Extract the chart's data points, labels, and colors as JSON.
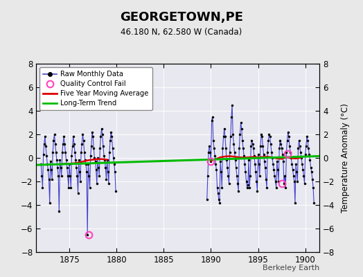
{
  "title": "GEORGETOWN,PE",
  "subtitle": "46.180 N, 62.580 W (Canada)",
  "ylabel": "Temperature Anomaly (°C)",
  "xlabel_credit": "Berkeley Earth",
  "xlim": [
    1871.5,
    1901.5
  ],
  "ylim": [
    -8,
    8
  ],
  "yticks": [
    -8,
    -6,
    -4,
    -2,
    0,
    2,
    4,
    6,
    8
  ],
  "xticks": [
    1875,
    1880,
    1885,
    1890,
    1895,
    1900
  ],
  "bg_color": "#e8e8e8",
  "plot_bg_color": "#e8e8f0",
  "line_color": "#4444cc",
  "dot_color": "#000000",
  "ma_color": "#dd0000",
  "ma_lw": 1.8,
  "trend_color": "#00bb00",
  "trend_lw": 2.2,
  "qc_color": "#ff44bb",
  "raw_segments": [
    {
      "x": [
        1872.0,
        1872.083,
        1872.167,
        1872.25,
        1872.333,
        1872.417,
        1872.5,
        1872.583,
        1872.667,
        1872.75,
        1872.833,
        1872.917,
        1873.0,
        1873.083,
        1873.167,
        1873.25,
        1873.333,
        1873.417,
        1873.5,
        1873.583,
        1873.667,
        1873.75,
        1873.833,
        1873.917,
        1874.0,
        1874.083,
        1874.167,
        1874.25,
        1874.333,
        1874.417,
        1874.5,
        1874.583,
        1874.667,
        1874.75,
        1874.833,
        1874.917,
        1875.0,
        1875.083,
        1875.167,
        1875.25,
        1875.333,
        1875.417,
        1875.5,
        1875.583,
        1875.667,
        1875.75,
        1875.833,
        1875.917,
        1876.0,
        1876.083,
        1876.167,
        1876.25,
        1876.333,
        1876.417,
        1876.5,
        1876.583,
        1876.667,
        1876.75,
        1876.833,
        1876.917,
        1877.0,
        1877.083,
        1877.167,
        1877.25,
        1877.333,
        1877.417,
        1877.5,
        1877.583,
        1877.667,
        1877.75,
        1877.833,
        1877.917,
        1878.0,
        1878.083,
        1878.167,
        1878.25,
        1878.333,
        1878.417,
        1878.5,
        1878.583,
        1878.667,
        1878.75,
        1878.833,
        1878.917,
        1879.0,
        1879.083,
        1879.167,
        1879.25,
        1879.333,
        1879.417,
        1879.5,
        1879.583,
        1879.667,
        1879.75,
        1879.833,
        1879.917
      ],
      "y": [
        -0.5,
        -1.5,
        -2.5,
        0.3,
        1.2,
        1.8,
        1.0,
        0.2,
        -0.5,
        -1.0,
        -1.8,
        -3.8,
        -0.3,
        -1.0,
        -1.8,
        0.5,
        1.5,
        2.0,
        1.2,
        0.5,
        -0.2,
        -0.8,
        -1.5,
        -4.5,
        -0.2,
        -0.8,
        -1.5,
        0.5,
        1.2,
        1.8,
        1.2,
        0.5,
        -0.2,
        -0.8,
        -1.5,
        -2.5,
        -0.5,
        -1.5,
        -2.5,
        0.2,
        1.0,
        1.8,
        1.2,
        0.5,
        -0.2,
        -0.8,
        -1.5,
        -3.0,
        -0.2,
        -1.2,
        -2.0,
        0.5,
        1.2,
        2.0,
        1.5,
        0.5,
        -0.2,
        -0.5,
        -1.2,
        -6.5,
        -0.5,
        -1.5,
        -2.5,
        0.2,
        1.0,
        2.2,
        1.8,
        0.8,
        0.0,
        -0.3,
        -1.0,
        -2.2,
        0.0,
        -0.8,
        -1.5,
        0.8,
        1.8,
        2.5,
        2.0,
        1.0,
        0.2,
        -0.2,
        -0.8,
        -1.8,
        -0.2,
        -1.2,
        -2.2,
        0.5,
        1.5,
        2.2,
        1.8,
        0.8,
        0.0,
        -0.5,
        -1.2,
        -2.8
      ]
    },
    {
      "x": [
        1889.583,
        1889.667,
        1889.75,
        1889.833,
        1889.917,
        1890.0,
        1890.083,
        1890.167,
        1890.25,
        1890.333,
        1890.417,
        1890.5,
        1890.583,
        1890.667,
        1890.75,
        1890.833,
        1890.917,
        1891.0,
        1891.083,
        1891.167,
        1891.25,
        1891.333,
        1891.417,
        1891.5,
        1891.583,
        1891.667,
        1891.75,
        1891.833,
        1891.917,
        1892.0,
        1892.083,
        1892.167,
        1892.25,
        1892.333,
        1892.417,
        1892.5,
        1892.583,
        1892.667,
        1892.75,
        1892.833,
        1892.917,
        1893.0,
        1893.083,
        1893.167,
        1893.25,
        1893.333,
        1893.417,
        1893.5,
        1893.583,
        1893.667,
        1893.75,
        1893.833,
        1893.917,
        1894.0,
        1894.083,
        1894.167,
        1894.25,
        1894.333,
        1894.417,
        1894.5,
        1894.583,
        1894.667,
        1894.75,
        1894.833,
        1894.917,
        1895.0,
        1895.083,
        1895.167,
        1895.25,
        1895.333,
        1895.417,
        1895.5,
        1895.583,
        1895.667,
        1895.75,
        1895.833,
        1895.917,
        1896.0,
        1896.083,
        1896.167,
        1896.25,
        1896.333,
        1896.417,
        1896.5,
        1896.583,
        1896.667,
        1896.75,
        1896.833,
        1896.917,
        1897.0,
        1897.083,
        1897.167,
        1897.25,
        1897.333,
        1897.417,
        1897.5,
        1897.583,
        1897.667,
        1897.75,
        1897.833,
        1897.917,
        1898.0,
        1898.083,
        1898.167,
        1898.25,
        1898.333,
        1898.417,
        1898.5,
        1898.583,
        1898.667,
        1898.75,
        1898.833,
        1898.917,
        1899.0,
        1899.083,
        1899.167,
        1899.25,
        1899.333,
        1899.417,
        1899.5,
        1899.583,
        1899.667,
        1899.75,
        1899.833,
        1899.917,
        1900.0,
        1900.083,
        1900.167,
        1900.25,
        1900.333,
        1900.417,
        1900.5,
        1900.583,
        1900.667,
        1900.75,
        1900.833,
        1900.917
      ],
      "y": [
        -3.5,
        -1.5,
        0.5,
        1.0,
        0.5,
        -0.3,
        3.2,
        3.5,
        1.5,
        0.8,
        0.2,
        -0.5,
        -1.0,
        -2.5,
        -3.0,
        -3.5,
        -3.8,
        -0.3,
        -1.2,
        -2.5,
        0.8,
        1.8,
        2.5,
        1.8,
        0.8,
        -0.2,
        -0.8,
        -1.5,
        -2.2,
        0.5,
        1.8,
        3.5,
        4.5,
        2.0,
        1.2,
        0.5,
        -0.2,
        -0.8,
        -1.5,
        -2.2,
        -2.8,
        0.8,
        2.0,
        3.0,
        2.5,
        1.5,
        0.8,
        0.2,
        -0.5,
        -1.2,
        -2.0,
        -2.5,
        -2.3,
        -0.2,
        -2.5,
        -1.5,
        1.0,
        1.5,
        1.2,
        0.8,
        0.2,
        -0.5,
        -1.2,
        -2.0,
        -2.8,
        0.3,
        -0.5,
        -1.5,
        1.0,
        2.0,
        1.8,
        1.0,
        0.3,
        -0.3,
        -0.8,
        -1.8,
        -2.5,
        0.5,
        1.5,
        2.0,
        1.8,
        1.2,
        0.5,
        0.0,
        -0.5,
        -1.0,
        -1.5,
        -2.0,
        -2.5,
        -0.3,
        -1.0,
        -2.0,
        0.8,
        1.5,
        1.2,
        0.8,
        0.3,
        -0.3,
        -2.2,
        -1.5,
        -2.5,
        0.5,
        1.5,
        2.2,
        1.8,
        1.0,
        0.5,
        0.0,
        -0.5,
        -1.0,
        -1.5,
        -2.0,
        -3.8,
        -0.5,
        -1.2,
        -2.0,
        0.8,
        1.5,
        1.0,
        0.5,
        0.0,
        -0.5,
        -1.0,
        -1.5,
        -2.2,
        0.3,
        1.0,
        1.8,
        1.5,
        0.8,
        0.3,
        -0.2,
        -0.8,
        -1.2,
        -1.8,
        -2.5,
        -3.8
      ]
    }
  ],
  "ma_segments": [
    {
      "x": [
        1874.0,
        1874.5,
        1875.0,
        1875.5,
        1876.0,
        1876.5,
        1877.0,
        1877.5,
        1878.0,
        1878.5,
        1879.0
      ],
      "y": [
        -0.55,
        -0.5,
        -0.5,
        -0.45,
        -0.4,
        -0.3,
        -0.2,
        -0.15,
        -0.1,
        -0.1,
        -0.15
      ]
    },
    {
      "x": [
        1890.0,
        1890.5,
        1891.0,
        1891.5,
        1892.0,
        1892.5,
        1893.0,
        1893.5,
        1894.0,
        1894.5,
        1895.0,
        1895.5,
        1896.0,
        1896.5,
        1897.0,
        1897.5,
        1898.0,
        1898.5,
        1899.0,
        1899.5
      ],
      "y": [
        -0.25,
        -0.1,
        0.05,
        0.12,
        0.15,
        0.1,
        0.05,
        0.02,
        0.05,
        0.08,
        0.05,
        0.08,
        0.1,
        0.05,
        -0.05,
        -0.08,
        0.05,
        -0.02,
        -0.05,
        0.02
      ]
    }
  ],
  "trend_data": {
    "x": [
      1871.5,
      1901.5
    ],
    "y": [
      -0.6,
      0.15
    ]
  },
  "qc_fail_points": [
    [
      1877.083,
      -6.5
    ],
    [
      1890.0,
      -0.3
    ],
    [
      1897.5,
      -2.2
    ],
    [
      1898.083,
      0.35
    ]
  ]
}
